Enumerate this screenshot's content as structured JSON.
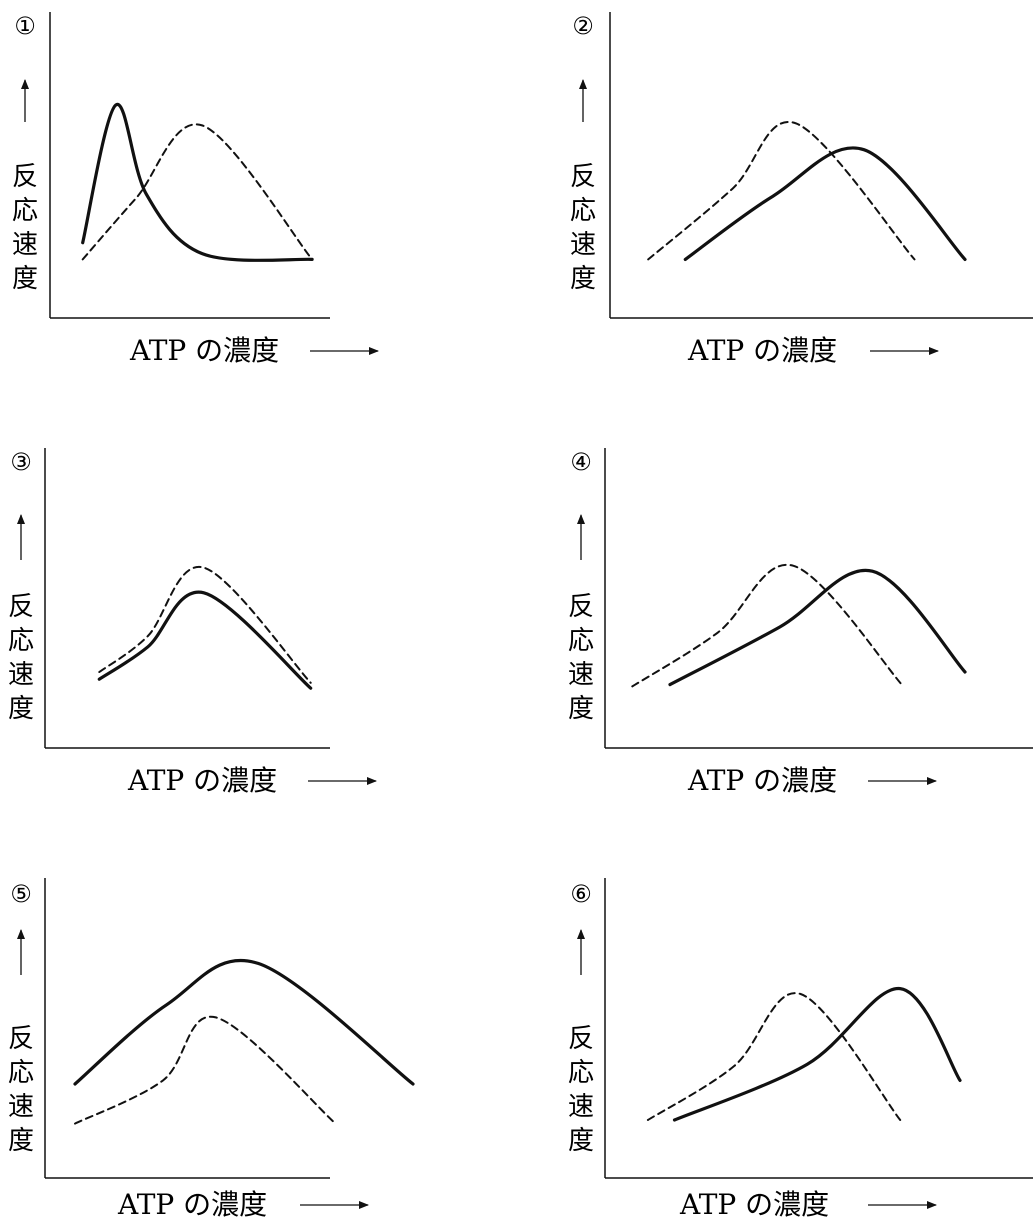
{
  "chart_data": [
    {
      "type": "line",
      "panel_number": "①",
      "ylabel": "反応速度",
      "xlabel": "ATP の濃度",
      "series": [
        {
          "style": "solid",
          "x": [
            0.03,
            0.16,
            0.28,
            0.5,
            0.93
          ],
          "y": [
            0.19,
            0.93,
            0.45,
            0.13,
            0.1
          ]
        },
        {
          "style": "dashed",
          "x": [
            0.03,
            0.24,
            0.5,
            0.93
          ],
          "y": [
            0.1,
            0.43,
            0.82,
            0.1
          ]
        }
      ]
    },
    {
      "type": "line",
      "panel_number": "②",
      "ylabel": "反応速度",
      "xlabel": "ATP の濃度",
      "series": [
        {
          "style": "dashed",
          "x": [
            0.06,
            0.31,
            0.5,
            0.85
          ],
          "y": [
            0.1,
            0.48,
            0.83,
            0.1
          ]
        },
        {
          "style": "solid",
          "x": [
            0.17,
            0.43,
            0.7,
            1.0
          ],
          "y": [
            0.1,
            0.44,
            0.69,
            0.1
          ]
        }
      ]
    },
    {
      "type": "line",
      "panel_number": "③",
      "ylabel": "反応速度",
      "xlabel": "ATP の濃度",
      "series": [
        {
          "style": "dashed",
          "x": [
            0.1,
            0.3,
            0.53,
            0.97
          ],
          "y": [
            0.2,
            0.4,
            0.78,
            0.14
          ]
        },
        {
          "style": "solid",
          "x": [
            0.1,
            0.3,
            0.53,
            0.97
          ],
          "y": [
            0.16,
            0.34,
            0.64,
            0.11
          ]
        }
      ]
    },
    {
      "type": "line",
      "panel_number": "④",
      "ylabel": "反応速度",
      "xlabel": "ATP の濃度",
      "series": [
        {
          "style": "dashed",
          "x": [
            0.03,
            0.28,
            0.5,
            0.82
          ],
          "y": [
            0.12,
            0.42,
            0.79,
            0.12
          ]
        },
        {
          "style": "solid",
          "x": [
            0.14,
            0.46,
            0.73,
            1.0
          ],
          "y": [
            0.13,
            0.45,
            0.76,
            0.2
          ]
        }
      ]
    },
    {
      "type": "line",
      "panel_number": "⑤",
      "ylabel": "反応速度",
      "xlabel": "ATP の濃度",
      "series": [
        {
          "style": "solid",
          "x": [
            0.02,
            0.28,
            0.54,
            0.98
          ],
          "y": [
            0.3,
            0.74,
            0.97,
            0.3
          ]
        },
        {
          "style": "dashed",
          "x": [
            0.02,
            0.27,
            0.42,
            0.76
          ],
          "y": [
            0.08,
            0.32,
            0.67,
            0.08
          ]
        }
      ]
    },
    {
      "type": "line",
      "panel_number": "⑥",
      "ylabel": "反応速度",
      "xlabel": "ATP の濃度",
      "series": [
        {
          "style": "dashed",
          "x": [
            0.06,
            0.32,
            0.52,
            0.82
          ],
          "y": [
            0.1,
            0.4,
            0.8,
            0.1
          ]
        },
        {
          "style": "solid",
          "x": [
            0.14,
            0.54,
            0.82,
            1.0
          ],
          "y": [
            0.1,
            0.41,
            0.83,
            0.32
          ]
        }
      ]
    }
  ]
}
